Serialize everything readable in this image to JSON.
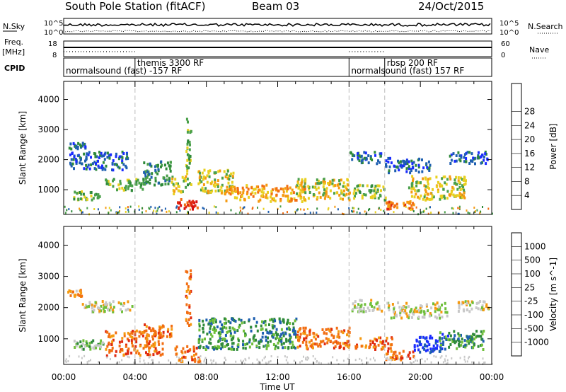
{
  "header": {
    "station": "South Pole Station (fitACF)",
    "beam": "Beam 03",
    "date": "24/Oct/2015"
  },
  "params": {
    "nsky_label": "N.Sky",
    "nsearch_label": "N.Search",
    "freq_label_1": "Freq.",
    "freq_label_2": "[MHz]",
    "nave_label": "Nave",
    "cpid_label": "CPID",
    "left_ticks_top": [
      "10^5",
      "10^0"
    ],
    "right_ticks_top": [
      "10^5",
      "10^0"
    ],
    "freq_ticks": [
      "18",
      "8"
    ],
    "nave_ticks": [
      "60",
      "0"
    ]
  },
  "cpid_segments": [
    {
      "start_hour": 0,
      "end_hour": 4,
      "label": "normalsound (fast) -157 RF"
    },
    {
      "start_hour": 4,
      "end_hour": 16,
      "label": "themis 3300 RF"
    },
    {
      "start_hour": 16,
      "end_hour": 18,
      "label": "normalsound (fast) 157 RF"
    },
    {
      "start_hour": 18,
      "end_hour": 24,
      "label": "rbsp 200 RF"
    }
  ],
  "chart_data": [
    {
      "type": "heatmap",
      "title": "Power",
      "ylabel": "Slant Range [km]",
      "xlabel": "",
      "xlim": [
        0,
        24
      ],
      "ylim": [
        180,
        4600
      ],
      "yticks": [
        1000,
        2000,
        3000,
        4000
      ],
      "colorbar_label": "Power [dB]",
      "colorbar_ticks": [
        "4",
        "8",
        "12",
        "16",
        "20",
        "24",
        "28"
      ],
      "colorbar_colors": [
        "#1a2cff",
        "#1e5fb0",
        "#2f8a3a",
        "#4aa04a",
        "#e8d020",
        "#f59a10",
        "#f26e12",
        "#e02a10",
        "#d81010"
      ],
      "dashed_vlines_hours": [
        4,
        16,
        18
      ],
      "echo_regions": [
        {
          "x0": 0.2,
          "x1": 1.2,
          "y0": 2400,
          "y1": 2600,
          "level": 1
        },
        {
          "x0": 0.3,
          "x1": 3.6,
          "y0": 1700,
          "y1": 2300,
          "level": 1
        },
        {
          "x0": 0.5,
          "x1": 2.0,
          "y0": 700,
          "y1": 1000,
          "level": 3
        },
        {
          "x0": 2.3,
          "x1": 4.5,
          "y0": 1000,
          "y1": 1400,
          "level": 3
        },
        {
          "x0": 4.4,
          "x1": 6.0,
          "y0": 1200,
          "y1": 2000,
          "level": 2
        },
        {
          "x0": 6.0,
          "x1": 6.8,
          "y0": 900,
          "y1": 1500,
          "level": 4
        },
        {
          "x0": 6.3,
          "x1": 7.5,
          "y0": 380,
          "y1": 720,
          "level": 7
        },
        {
          "x0": 6.8,
          "x1": 7.1,
          "y0": 1200,
          "y1": 3400,
          "level": 3
        },
        {
          "x0": 7.5,
          "x1": 9.5,
          "y0": 900,
          "y1": 1700,
          "level": 4
        },
        {
          "x0": 9.0,
          "x1": 13.5,
          "y0": 650,
          "y1": 1200,
          "level": 5
        },
        {
          "x0": 13.0,
          "x1": 16.0,
          "y0": 700,
          "y1": 1400,
          "level": 4
        },
        {
          "x0": 16.0,
          "x1": 17.8,
          "y0": 1900,
          "y1": 2300,
          "level": 1
        },
        {
          "x0": 16.2,
          "x1": 18.0,
          "y0": 700,
          "y1": 1200,
          "level": 3
        },
        {
          "x0": 18.0,
          "x1": 20.5,
          "y0": 1600,
          "y1": 2100,
          "level": 1
        },
        {
          "x0": 18.0,
          "x1": 19.6,
          "y0": 400,
          "y1": 650,
          "level": 6
        },
        {
          "x0": 19.3,
          "x1": 22.5,
          "y0": 700,
          "y1": 1500,
          "level": 4
        },
        {
          "x0": 21.5,
          "x1": 23.8,
          "y0": 1900,
          "y1": 2300,
          "level": 1
        }
      ]
    },
    {
      "type": "heatmap",
      "title": "Velocity",
      "ylabel": "Slant Range [km]",
      "xlabel": "Time UT",
      "xlim": [
        0,
        24
      ],
      "ylim": [
        180,
        4600
      ],
      "yticks": [
        1000,
        2000,
        3000,
        4000
      ],
      "xtick_labels": [
        "00:00",
        "04:00",
        "08:00",
        "12:00",
        "16:00",
        "20:00",
        "00:00"
      ],
      "colorbar_label": "Velocity [m s^-1]",
      "colorbar_ticks": [
        "1000",
        "500",
        "100",
        "25",
        "-25",
        "-100",
        "-500",
        "-1000"
      ],
      "colorbar_colors": [
        "#1a2cff",
        "#1e5fb0",
        "#2f8a3a",
        "#6fbf3a",
        "#c8c8c8",
        "#f59a10",
        "#f26e12",
        "#e02a10",
        "#d81010"
      ],
      "dashed_vlines_hours": [
        4,
        16,
        18
      ],
      "echo_regions": [
        {
          "x0": 0.2,
          "x1": 1.0,
          "y0": 2400,
          "y1": 2600,
          "level": 5
        },
        {
          "x0": 1.0,
          "x1": 3.8,
          "y0": 1900,
          "y1": 2250,
          "level": 4
        },
        {
          "x0": 0.5,
          "x1": 2.2,
          "y0": 700,
          "y1": 1000,
          "level": 3
        },
        {
          "x0": 2.3,
          "x1": 5.5,
          "y0": 500,
          "y1": 1300,
          "level": 6
        },
        {
          "x0": 4.4,
          "x1": 6.0,
          "y0": 1100,
          "y1": 1500,
          "level": 6
        },
        {
          "x0": 6.2,
          "x1": 7.6,
          "y0": 300,
          "y1": 800,
          "level": 6
        },
        {
          "x0": 6.8,
          "x1": 7.1,
          "y0": 1400,
          "y1": 3300,
          "level": 6
        },
        {
          "x0": 7.5,
          "x1": 13.0,
          "y0": 700,
          "y1": 1700,
          "level": 2
        },
        {
          "x0": 13.0,
          "x1": 16.0,
          "y0": 700,
          "y1": 1400,
          "level": 6
        },
        {
          "x0": 16.0,
          "x1": 17.8,
          "y0": 1900,
          "y1": 2300,
          "level": 4
        },
        {
          "x0": 16.3,
          "x1": 18.5,
          "y0": 700,
          "y1": 1100,
          "level": 6
        },
        {
          "x0": 18.0,
          "x1": 21.5,
          "y0": 1700,
          "y1": 2200,
          "level": 4
        },
        {
          "x0": 18.0,
          "x1": 19.6,
          "y0": 350,
          "y1": 650,
          "level": 6
        },
        {
          "x0": 19.5,
          "x1": 21.5,
          "y0": 600,
          "y1": 1200,
          "level": 0
        },
        {
          "x0": 21.0,
          "x1": 23.5,
          "y0": 700,
          "y1": 1300,
          "level": 2
        },
        {
          "x0": 22.0,
          "x1": 23.8,
          "y0": 1900,
          "y1": 2250,
          "level": 4
        }
      ]
    }
  ]
}
